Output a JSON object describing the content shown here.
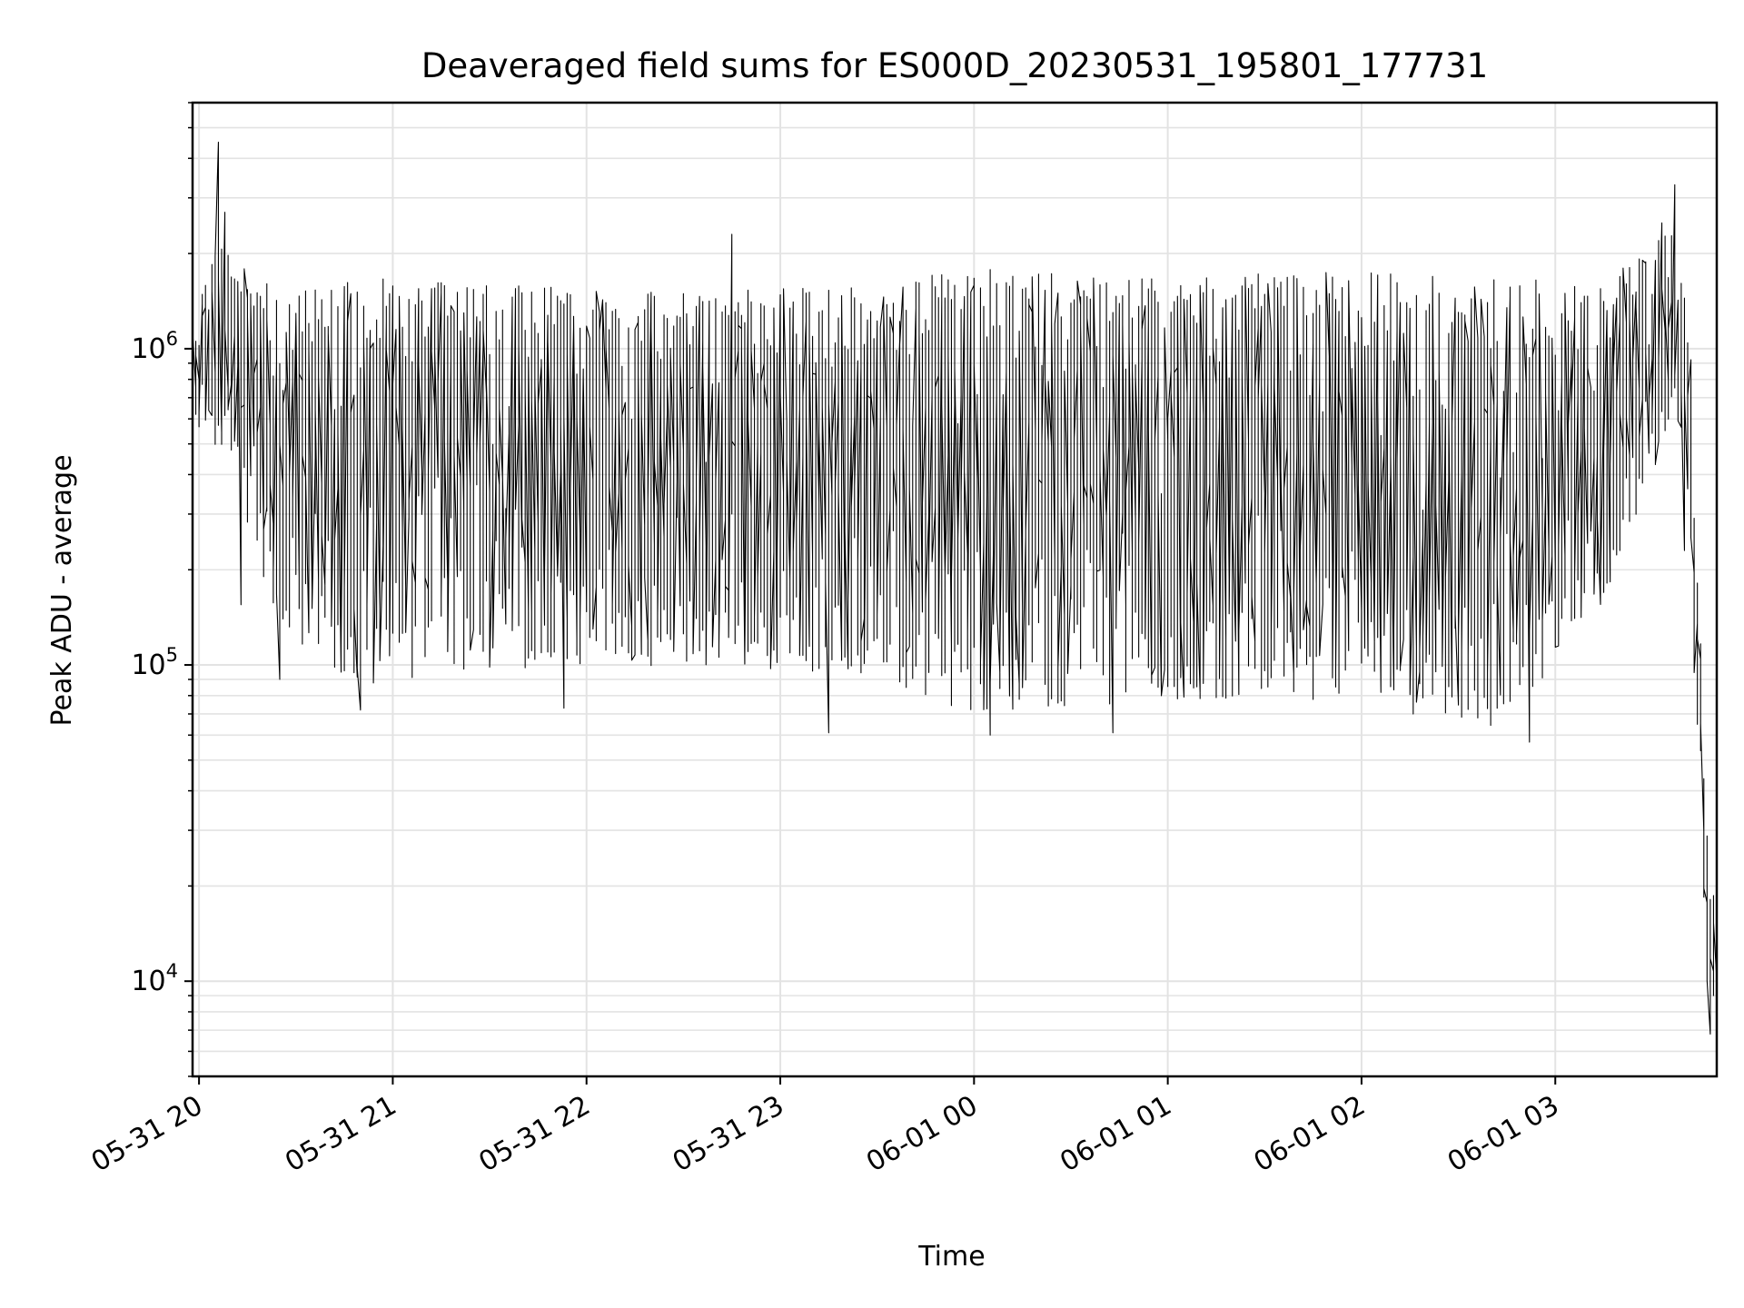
{
  "chart_data": {
    "type": "line",
    "title": "Deaveraged field sums for ES000D_20230531_195801_177731",
    "xlabel": "Time",
    "ylabel": "Peak ADU - average",
    "y_scale": "log",
    "ylim": [
      5000,
      6000000
    ],
    "xlim": [
      "2023-05-31 19:58",
      "2023-06-01 03:50"
    ],
    "x_ticks": [
      {
        "value": "2023-05-31 20:00",
        "label": "05-31 20"
      },
      {
        "value": "2023-05-31 21:00",
        "label": "05-31 21"
      },
      {
        "value": "2023-05-31 22:00",
        "label": "05-31 22"
      },
      {
        "value": "2023-05-31 23:00",
        "label": "05-31 23"
      },
      {
        "value": "2023-06-01 00:00",
        "label": "06-01 00"
      },
      {
        "value": "2023-06-01 01:00",
        "label": "06-01 01"
      },
      {
        "value": "2023-06-01 02:00",
        "label": "06-01 02"
      },
      {
        "value": "2023-06-01 03:00",
        "label": "06-01 03"
      }
    ],
    "y_ticks": [
      {
        "value": 10000,
        "base": "10",
        "exp": "4"
      },
      {
        "value": 100000,
        "base": "10",
        "exp": "5"
      },
      {
        "value": 1000000,
        "base": "10",
        "exp": "6"
      }
    ],
    "grid": true,
    "line_color": "#000000",
    "series": [
      {
        "x_start": "2023-05-31 19:58",
        "x_end": "2023-06-01 03:50",
        "samples_per_hour": 480,
        "envelope_points": [
          {
            "x": "2023-05-31 19:58",
            "low": 550000,
            "high": 1050000
          },
          {
            "x": "2023-05-31 20:05",
            "low": 500000,
            "high": 2200000
          },
          {
            "x": "2023-05-31 20:10",
            "low": 400000,
            "high": 2000000
          },
          {
            "x": "2023-05-31 20:25",
            "low": 130000,
            "high": 1500000
          },
          {
            "x": "2023-05-31 20:50",
            "low": 85000,
            "high": 1700000
          },
          {
            "x": "2023-05-31 21:30",
            "low": 95000,
            "high": 1600000
          },
          {
            "x": "2023-05-31 22:30",
            "low": 100000,
            "high": 1500000
          },
          {
            "x": "2023-05-31 23:30",
            "low": 90000,
            "high": 1600000
          },
          {
            "x": "2023-06-01 00:00",
            "low": 70000,
            "high": 1800000
          },
          {
            "x": "2023-06-01 01:00",
            "low": 75000,
            "high": 1700000
          },
          {
            "x": "2023-06-01 02:00",
            "low": 75000,
            "high": 1800000
          },
          {
            "x": "2023-06-01 02:45",
            "low": 62000,
            "high": 1700000
          },
          {
            "x": "2023-06-01 03:15",
            "low": 150000,
            "high": 1600000
          },
          {
            "x": "2023-06-01 03:38",
            "low": 600000,
            "high": 2500000
          },
          {
            "x": "2023-06-01 03:42",
            "low": 300000,
            "high": 1000000
          },
          {
            "x": "2023-06-01 03:45",
            "low": 40000,
            "high": 150000
          },
          {
            "x": "2023-06-01 03:48",
            "low": 7000,
            "high": 20000
          },
          {
            "x": "2023-06-01 03:50",
            "low": 8000,
            "high": 20000
          }
        ],
        "spikes": [
          {
            "x": "2023-05-31 20:06",
            "value": 4500000
          },
          {
            "x": "2023-05-31 20:08",
            "value": 2700000
          },
          {
            "x": "2023-05-31 20:13",
            "value": 155000
          },
          {
            "x": "2023-05-31 20:25",
            "value": 90000
          },
          {
            "x": "2023-05-31 20:50",
            "value": 72000
          },
          {
            "x": "2023-05-31 21:53",
            "value": 73000
          },
          {
            "x": "2023-05-31 22:45",
            "value": 2300000
          },
          {
            "x": "2023-05-31 23:15",
            "value": 61000
          },
          {
            "x": "2023-06-01 00:05",
            "value": 60000
          },
          {
            "x": "2023-06-01 00:43",
            "value": 61000
          },
          {
            "x": "2023-06-01 02:52",
            "value": 57000
          },
          {
            "x": "2023-06-01 03:33",
            "value": 2500000
          },
          {
            "x": "2023-06-01 03:37",
            "value": 3300000
          },
          {
            "x": "2023-06-01 03:40",
            "value": 230000
          },
          {
            "x": "2023-06-01 03:48",
            "value": 6800
          }
        ]
      }
    ]
  }
}
